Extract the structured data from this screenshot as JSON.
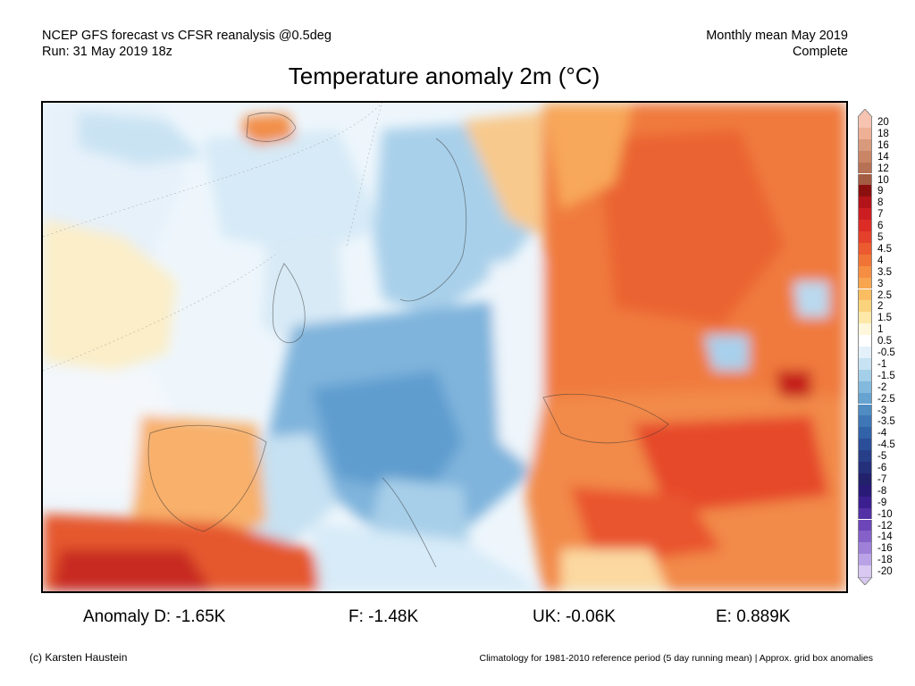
{
  "header": {
    "line1_left": "NCEP GFS forecast vs CFSR reanalysis @0.5deg",
    "line2_left": "Run: 31 May 2019 18z",
    "line1_right": "Monthly mean May 2019",
    "line2_right": "Complete"
  },
  "title": "Temperature anomaly 2m (°C)",
  "legend": {
    "labels": [
      "20",
      "18",
      "16",
      "14",
      "12",
      "10",
      "9",
      "8",
      "7",
      "6",
      "5",
      "4.5",
      "4",
      "3.5",
      "3",
      "2.5",
      "2",
      "1.5",
      "1",
      "0.5",
      "-0.5",
      "-1",
      "-1.5",
      "-2",
      "-2.5",
      "-3",
      "-3.5",
      "-4",
      "-4.5",
      "-5",
      "-6",
      "-7",
      "-8",
      "-9",
      "-10",
      "-12",
      "-14",
      "-16",
      "-18",
      "-20"
    ],
    "colors": [
      "#f6c4b0",
      "#eeb095",
      "#d9997c",
      "#c98565",
      "#b77155",
      "#a35c42",
      "#8c0f10",
      "#b3141a",
      "#cc1e22",
      "#dd2c26",
      "#e5402c",
      "#ec5a30",
      "#f07436",
      "#f58e42",
      "#f8a550",
      "#fabd62",
      "#fbd37c",
      "#fde8a8",
      "#fff7dc",
      "#ffffff",
      "#e4f1fa",
      "#c6e2f3",
      "#a4cfe8",
      "#82b9dc",
      "#66a3d0",
      "#4f8cc2",
      "#3f77b6",
      "#3262a8",
      "#2a4f98",
      "#263f88",
      "#24307a",
      "#22216b",
      "#2a1a78",
      "#3b1f90",
      "#5430a6",
      "#6c45b8",
      "#8460c8",
      "#9e80d8",
      "#baa2e6",
      "#d8c8f2"
    ]
  },
  "stats": {
    "D": "Anomaly D: -1.65K",
    "F": "F: -1.48K",
    "UK": "UK: -0.06K",
    "E": "E: 0.889K"
  },
  "footer": {
    "left": "(c) Karsten Haustein",
    "right": "Climatology for 1981-2010 reference period (5 day running mean) | Approx. grid box anomalies"
  }
}
